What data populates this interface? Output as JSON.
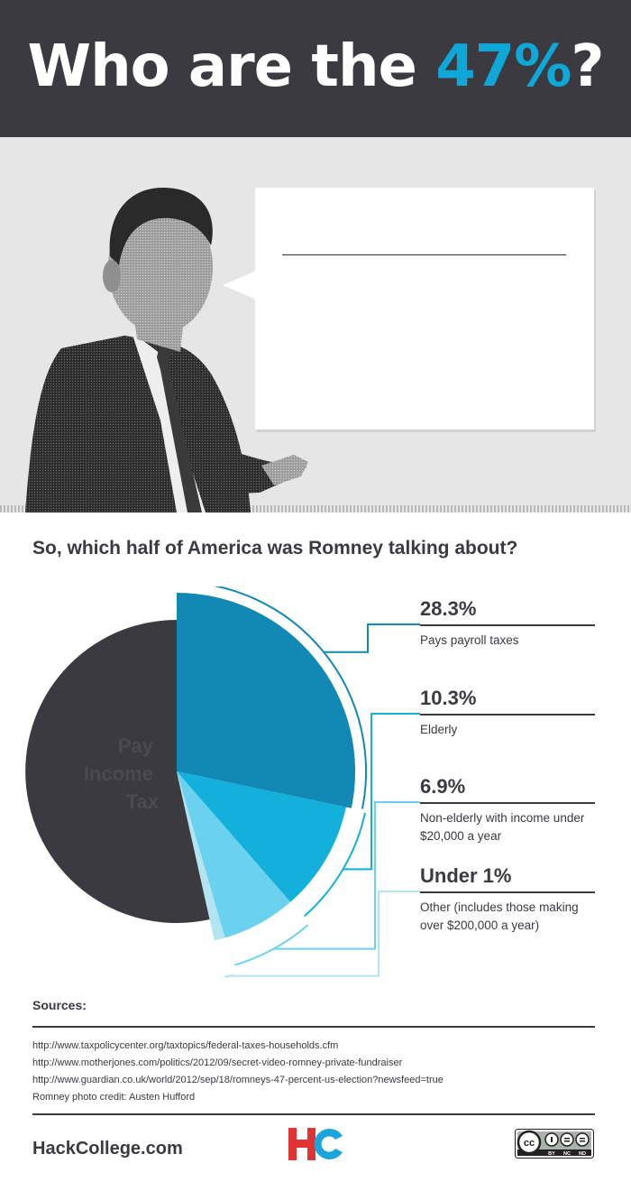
{
  "header": {
    "title_main": "Who are the ",
    "title_accent": "47%",
    "title_end": "?"
  },
  "question": "So, which half of America was Romney talking about?",
  "chart_data": {
    "type": "pie",
    "title": "",
    "slices": [
      {
        "label": "Pay Income Tax",
        "value": 53.5,
        "display": "",
        "description": "",
        "color": "#3a3a40"
      },
      {
        "label": "Pays payroll taxes",
        "value": 28.3,
        "display": "28.3%",
        "description": "Pays payroll taxes",
        "color": "#1288b5"
      },
      {
        "label": "Elderly",
        "value": 10.3,
        "display": "10.3%",
        "description": "Elderly",
        "color": "#12b0db"
      },
      {
        "label": "Non-elderly with income under $20,000 a year",
        "value": 6.9,
        "display": "6.9%",
        "description": "Non-elderly with income under $20,000 a year",
        "color": "#6ad2ef"
      },
      {
        "label": "Other (includes those making over $200,000 a year)",
        "value": 1.0,
        "display": "Under 1%",
        "description": "Other (includes those making over $200,000 a year)",
        "color": "#b2e4f2"
      }
    ],
    "center_label_lines": [
      "Pay",
      "Income",
      "Tax"
    ]
  },
  "sources": {
    "title": "Sources:",
    "items": [
      "http://www.taxpolicycenter.org/taxtopics/federal-taxes-households.cfm",
      "http://www.motherjones.com/politics/2012/09/secret-video-romney-private-fundraiser",
      "http://www.guardian.co.uk/world/2012/sep/18/romneys-47-percent-us-election?newsfeed=true",
      "Romney photo credit: Austen Hufford"
    ]
  },
  "footer": {
    "site": "HackCollege.com",
    "logo_letters": [
      "H",
      "C"
    ],
    "license": {
      "cc": "cc",
      "tags": [
        "BY",
        "NC",
        "ND"
      ]
    }
  },
  "colors": {
    "dark": "#3a3a40",
    "accent": "#0fa7d8",
    "logo_red": "#e23333",
    "logo_blue": "#1aa6dc"
  },
  "icons": {
    "portrait": "person-photo",
    "speech": "speech-bubble",
    "logo": "hc-logo",
    "license": "creative-commons-badge"
  }
}
